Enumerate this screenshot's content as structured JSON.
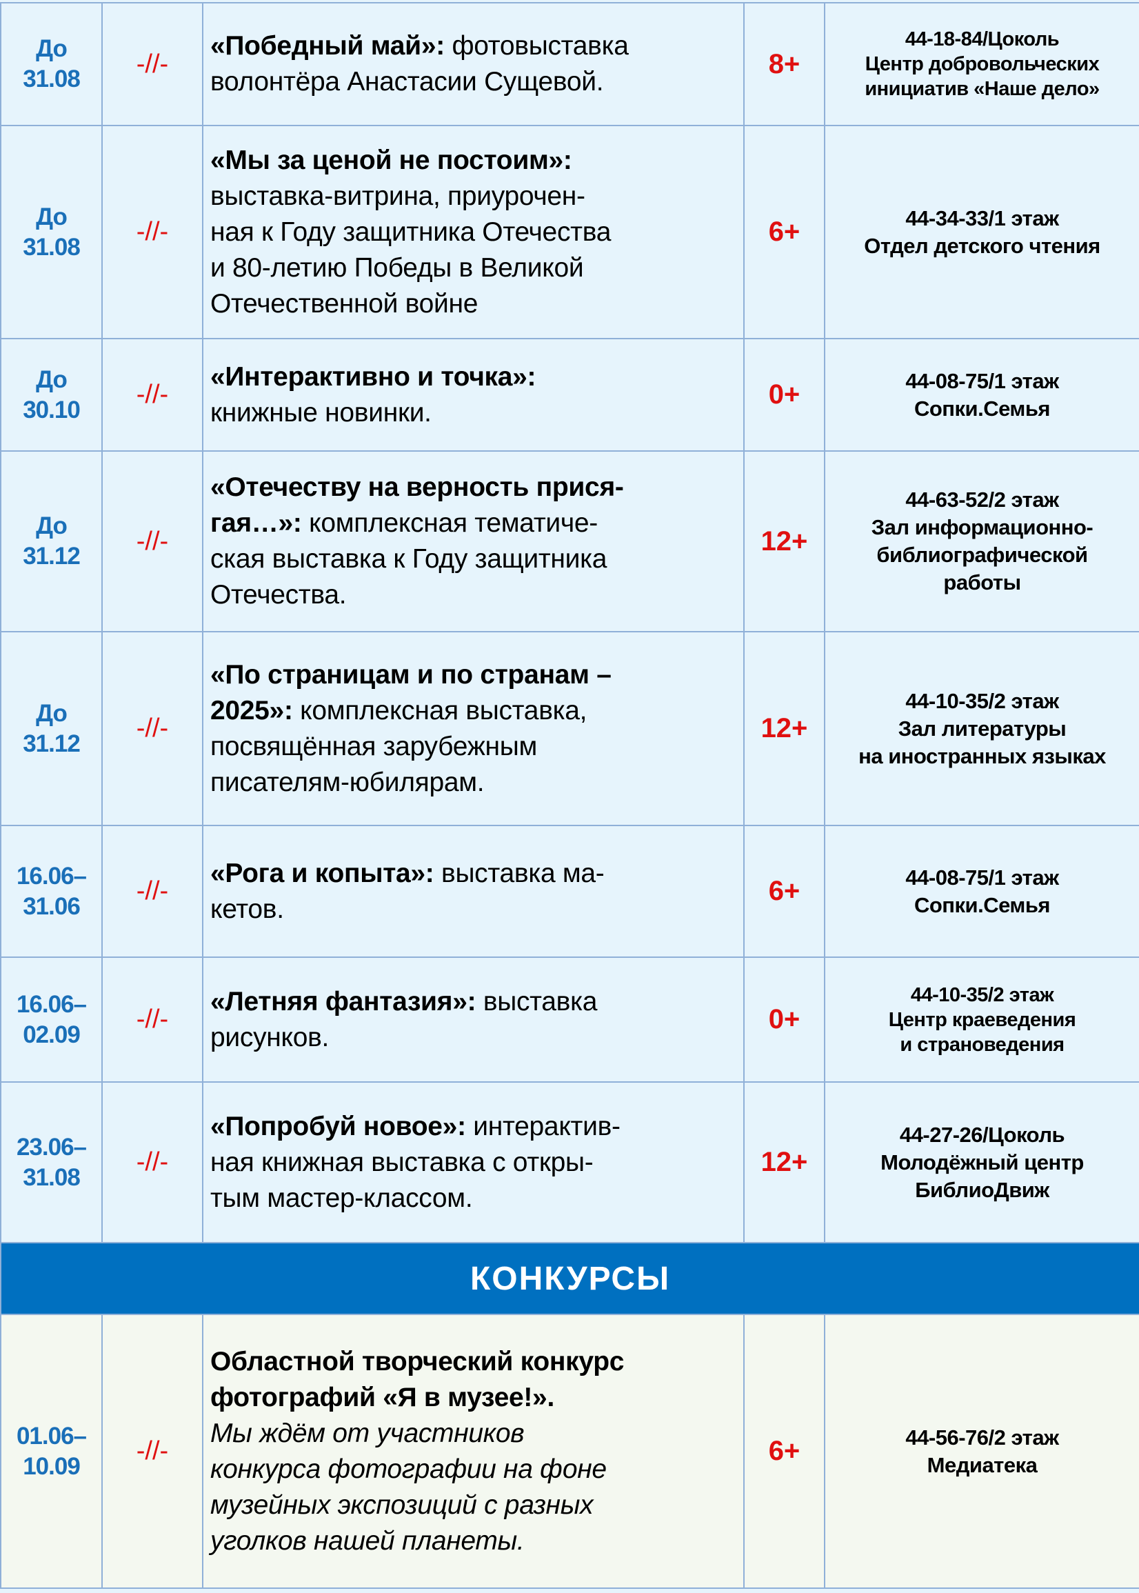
{
  "colors": {
    "date": "#1a6fb8",
    "age": "#e01010",
    "section_bg": "#0070c0",
    "row_bg": "#e6f4fc",
    "contest_bg": "#f4f8f0",
    "border": "#8fb0d8"
  },
  "exhibitions": [
    {
      "date": "До\n31.08",
      "ditto": "-//-",
      "title": "«Победный май»:",
      "text": " фотовыставка\nволонтёра Анастасии Сущевой.",
      "age": "8+",
      "place": "44-18-84/Цоколь\nЦентр добровольческих\nинициатив «Наше дело»"
    },
    {
      "date": "До\n31.08",
      "ditto": "-//-",
      "title": "«Мы за ценой не постоим»:",
      "text": "\nвыставка-витрина, приурочен-\nная к Году защитника Отечества\nи 80-летию Победы в Великой\nОтечественной войне",
      "age": "6+",
      "place": "44-34-33/1 этаж\nОтдел детского чтения"
    },
    {
      "date": "До\n30.10",
      "ditto": "-//-",
      "title": "«Интерактивно и точка»:",
      "text": "\nкнижные новинки.",
      "age": "0+",
      "place": "44-08-75/1 этаж\nСопки.Семья"
    },
    {
      "date": "До\n31.12",
      "ditto": "-//-",
      "title": "«Отечеству на верность прися-\nгая…»:",
      "text": " комплексная тематиче-\nская выставка к Году защитника\nОтечества.",
      "age": "12+",
      "place": "44-63-52/2 этаж\nЗал информационно-\nбиблиографической\nработы"
    },
    {
      "date": "До\n31.12",
      "ditto": "-//-",
      "title": "«По страницам и по странам –\n2025»:",
      "text": " комплексная выставка,\nпосвящённая зарубежным\nписателям-юбилярам.",
      "age": "12+",
      "place": "44-10-35/2 этаж\nЗал литературы\nна иностранных языках"
    },
    {
      "date": "16.06–\n31.06",
      "ditto": "-//-",
      "title": "«Рога и копыта»:",
      "text": " выставка ма-\nкетов.",
      "age": "6+",
      "place": "44-08-75/1 этаж\nСопки.Семья"
    },
    {
      "date": "16.06–\n02.09",
      "ditto": "-//-",
      "title": "«Летняя фантазия»:",
      "text": " выставка\nрисунков.",
      "age": "0+",
      "place": "44-10-35/2 этаж\nЦентр краеведения\nи страноведения"
    },
    {
      "date": "23.06–\n31.08",
      "ditto": "-//-",
      "title": "«Попробуй новое»:",
      "text": " интерактив-\nная книжная выставка с откры-\nтым мастер-классом.",
      "age": "12+",
      "place": "44-27-26/Цоколь\nМолодёжный центр\nБиблиоДвиж"
    }
  ],
  "section_title": "КОНКУРСЫ",
  "contest": {
    "date": "01.06–\n10.09",
    "ditto": "-//-",
    "title": "Областной творческий конкурс\nфотографий «Я в музее!».",
    "text": "\nМы ждём от участников\nконкурса фотографии на фоне\nмузейных экспозиций с разных\nуголков нашей планеты.",
    "age": "6+",
    "place": "44-56-76/2 этаж\nМедиатека"
  }
}
